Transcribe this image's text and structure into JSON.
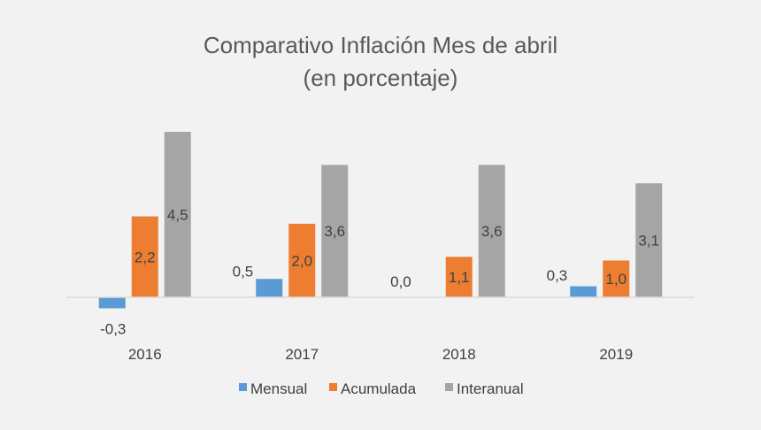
{
  "chart_data": {
    "type": "bar",
    "title": "Comparativo Inflación Mes de abril",
    "subtitle": "(en porcentaje)",
    "categories": [
      "2016",
      "2017",
      "2018",
      "2019"
    ],
    "series": [
      {
        "name": "Mensual",
        "color": "#5b9bd5",
        "values": [
          -0.3,
          0.5,
          0.0,
          0.3
        ],
        "labels": [
          "-0,3",
          "0,5",
          "0,0",
          "0,3"
        ]
      },
      {
        "name": "Acumulada",
        "color": "#ed7d31",
        "values": [
          2.2,
          2.0,
          1.1,
          1.0
        ],
        "labels": [
          "2,2",
          "2,0",
          "1,1",
          "1,0"
        ]
      },
      {
        "name": "Interanual",
        "color": "#a5a5a5",
        "values": [
          4.5,
          3.6,
          3.6,
          3.1
        ],
        "labels": [
          "4,5",
          "3,6",
          "3,6",
          "3,1"
        ]
      }
    ],
    "xlabel": "",
    "ylabel": "",
    "ylim": [
      -0.5,
      5.0
    ],
    "grid": false,
    "legend_position": "bottom",
    "axis_color": "#d9d9d9",
    "background": "#f2f2f2"
  }
}
